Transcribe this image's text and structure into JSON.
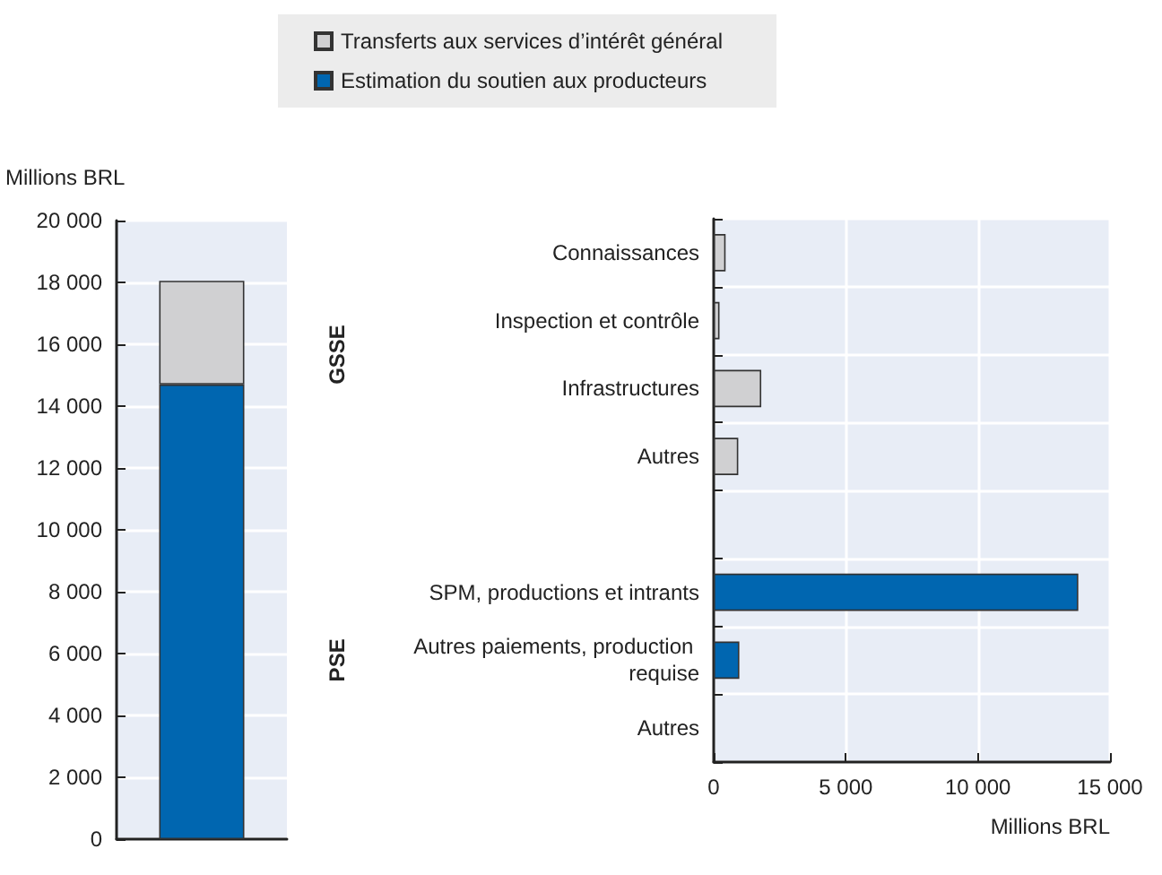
{
  "chart_data": [
    {
      "type": "bar",
      "stacked": true,
      "categories": [
        null
      ],
      "ylabel": "Millions BRL",
      "ylim": [
        0,
        20000
      ],
      "yticks": [
        0,
        2000,
        4000,
        6000,
        8000,
        10000,
        12000,
        14000,
        16000,
        18000,
        20000
      ],
      "grid": "y",
      "legend": "top",
      "series": [
        {
          "name": "Estimation du soutien aux producteurs",
          "color": "#0066b0",
          "values": [
            14700
          ]
        },
        {
          "name": "Transferts aux services d’intérêt général",
          "color": "#d0d0d2",
          "values": [
            3350
          ]
        }
      ]
    },
    {
      "type": "bar",
      "orientation": "horizontal",
      "categories": [
        "Connaissances",
        "Inspection et contrôle",
        "Infrastructures",
        "Autres",
        null,
        "SPM, productions et intrants",
        "Autres paiements, production requise",
        "Autres"
      ],
      "xlabel": "Millions BRL",
      "xlim": [
        0,
        15000
      ],
      "xticks": [
        0,
        5000,
        10000,
        15000
      ],
      "grid": true,
      "annotations": [
        "GSSE",
        "PSE"
      ],
      "series": [
        {
          "color": "#d0d0d2",
          "values": [
            450,
            220,
            1800,
            930,
            null,
            null,
            null,
            null
          ]
        },
        {
          "color": "#0066b0",
          "values": [
            null,
            null,
            null,
            null,
            null,
            13800,
            970,
            null
          ]
        }
      ]
    }
  ]
}
